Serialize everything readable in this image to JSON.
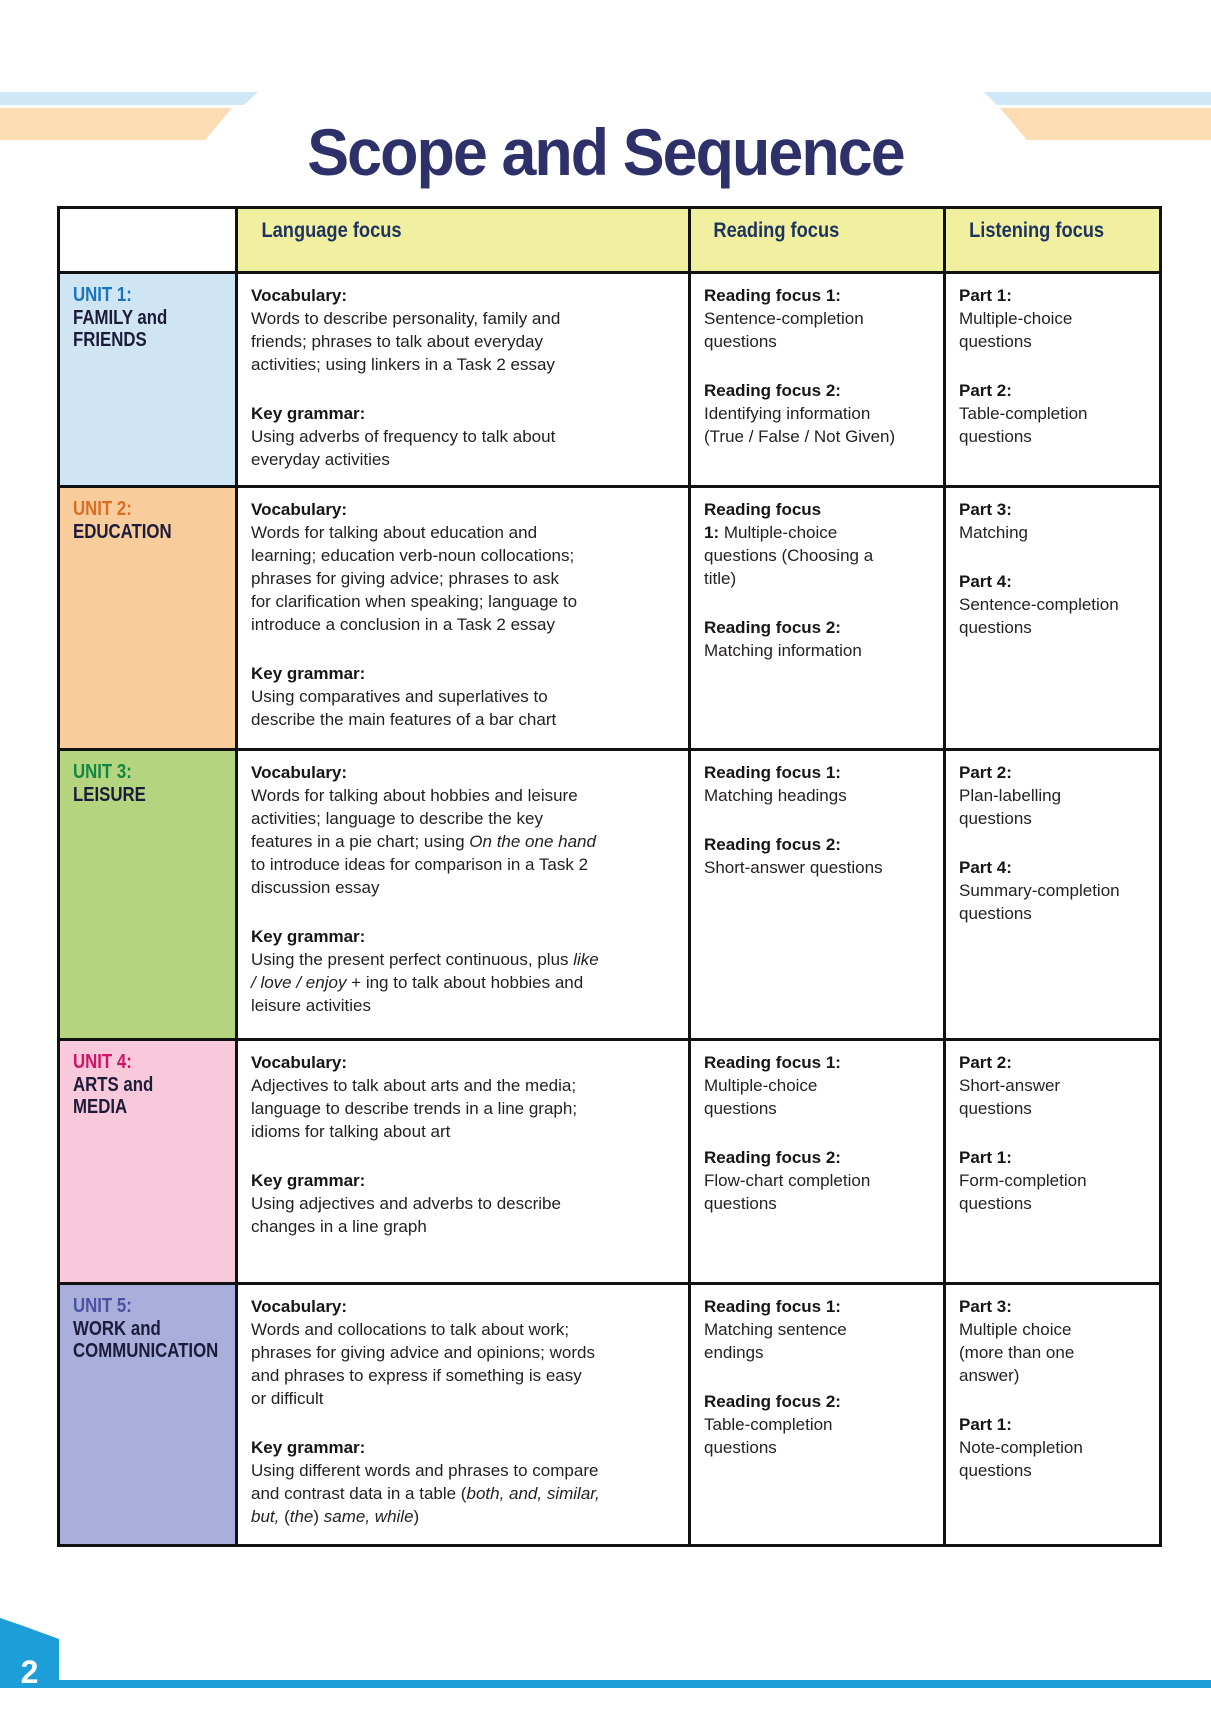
{
  "page": {
    "title": "Scope and Sequence",
    "page_number": "2"
  },
  "colors": {
    "accent_cyan": "#1d9ed9",
    "stripe_blue": "#cfe8f8",
    "stripe_peach": "#fcdcb2",
    "title_navy": "#2e3069",
    "header_bg": "#f1efa0",
    "header_text": "#1e335e",
    "table_border": "#111111",
    "body_text": "#231f20",
    "unit_name_text": "#1c1b3a"
  },
  "table": {
    "headers": [
      "",
      "Language focus",
      "Reading focus",
      "Listening focus"
    ],
    "units": [
      {
        "label": "UNIT 1:",
        "name": "FAMILY and FRIENDS",
        "label_color": "#1b75bb",
        "bg": "#cfe5f4",
        "language": [
          "<b>Vocabulary:</b><br>Words to describe personality, family and<br>friends; phrases to talk about everyday<br>activities; using linkers in a Task 2 essay",
          "<b>Key grammar:</b><br>Using adverbs of frequency to talk about<br>everyday activities"
        ],
        "reading": [
          "<b>Reading focus 1:</b><br>Sentence-completion<br>questions",
          "<b>Reading focus 2:</b><br>Identifying information<br>(True / False / Not Given)"
        ],
        "listening": [
          "<b>Part 1:</b><br>Multiple-choice<br>questions",
          "<b>Part 2:</b><br>Table-completion<br>questions"
        ]
      },
      {
        "label": "UNIT 2:",
        "name": "EDUCATION",
        "label_color": "#d96e27",
        "bg": "#f8cd9b",
        "language": [
          "<b>Vocabulary:</b><br>Words for talking about education and<br>learning; education verb-noun collocations;<br>phrases for giving advice; phrases to ask<br>for clarification when speaking; language to<br>introduce a conclusion in a Task 2 essay",
          "<b>Key grammar:</b><br>Using comparatives and superlatives to<br>describe the main features of a bar chart"
        ],
        "reading": [
          "<b>Reading focus<br>1:</b> Multiple-choice<br>questions (Choosing a<br>title)",
          "<b>Reading focus 2:</b><br>Matching information"
        ],
        "listening": [
          "<b>Part 3:</b><br>Matching",
          "",
          "<b>Part 4:</b><br>Sentence-completion<br>questions"
        ]
      },
      {
        "label": "UNIT 3:",
        "name": "LEISURE",
        "label_color": "#128742",
        "bg": "#b5d47f",
        "language": [
          "<b>Vocabulary:</b><br>Words for talking about hobbies and leisure<br>activities; language to describe the key<br>features in a pie chart; using <i>On the one hand</i><br>to introduce ideas for comparison in a Task 2<br>discussion essay",
          "<b>Key grammar:</b><br>Using the present perfect continuous, plus <i>like</i><br><i>/ love / enjoy</i> + ing to talk about hobbies and<br>leisure activities"
        ],
        "reading": [
          "<b>Reading focus 1:</b><br>Matching headings",
          "",
          "<b>Reading focus 2:</b><br>Short-answer questions"
        ],
        "listening": [
          "<b>Part 2:</b><br>Plan-labelling<br>questions",
          "<b>Part 4:</b><br>Summary-completion<br>questions"
        ]
      },
      {
        "label": "UNIT 4:",
        "name": "ARTS and MEDIA",
        "label_color": "#d01367",
        "bg": "#f8c9da",
        "language": [
          "<b>Vocabulary:</b><br>Adjectives to talk about arts and the media;<br>language to describe trends in a line graph;<br>idioms for talking about art",
          "<b>Key grammar:</b><br>Using adjectives and adverbs to describe<br>changes in a line graph"
        ],
        "reading": [
          "<b>Reading focus 1:</b><br>Multiple-choice<br>questions",
          "",
          "<b>Reading focus 2:</b><br>Flow-chart completion<br>questions"
        ],
        "listening": [
          "<b>Part 2:</b><br>Short-answer<br>questions",
          "<b>Part 1:</b><br>Form-completion<br>questions"
        ]
      },
      {
        "label": "UNIT 5:",
        "name": "WORK and COMMUNICATION",
        "label_color": "#4a52a3",
        "bg": "#a9aeda",
        "language": [
          "<b>Vocabulary:</b><br>Words and collocations to talk about work;<br>phrases for giving advice and opinions; words<br>and phrases to express if something is easy<br>or difficult",
          "<b>Key grammar:</b><br>Using different words and phrases to compare<br>and contrast data in a table (<i>both, and, similar,</i><br><i>but,</i> (<i>the</i>) <i>same, while</i>)"
        ],
        "reading": [
          "<b>Reading focus 1:</b><br>Matching sentence<br>endings",
          "<b>Reading focus 2:</b><br>Table-completion<br>questions"
        ],
        "listening": [
          "<b>Part 3:</b><br>Multiple choice<br>(more than one<br>answer)",
          "<b>Part 1:</b><br>Note-completion<br>questions"
        ]
      }
    ]
  }
}
